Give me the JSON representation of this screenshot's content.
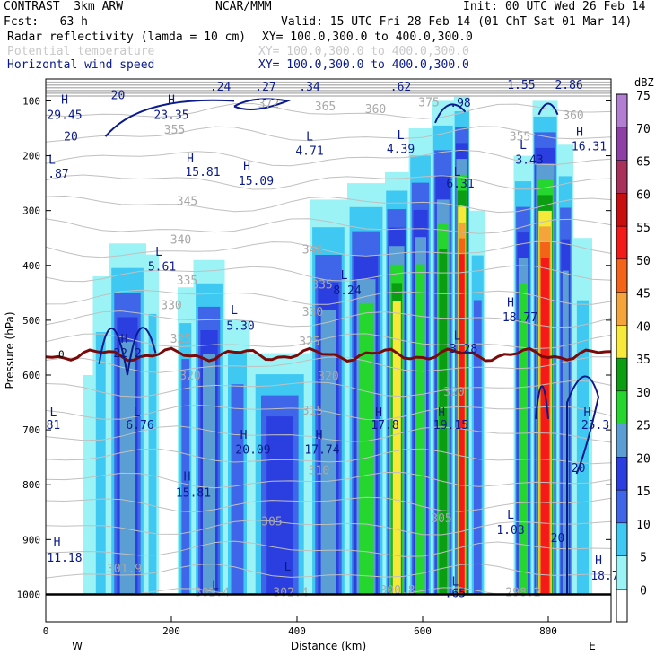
{
  "header": {
    "model": "CONTRAST  3km ARW",
    "org": "NCAR/MMM",
    "init": "Init: 00 UTC Wed 26 Feb 14",
    "fcst": "Fcst:   63 h",
    "valid": "Valid: 15 UTC Fri 28 Feb 14 (01 ChT Sat 01 Mar 14)",
    "fields": [
      {
        "name": "Radar reflectivity (lamda = 10 cm)",
        "xy": "XY= 100.0,300.0 to 400.0,300.0",
        "color": "#000000"
      },
      {
        "name": "Potential temperature",
        "xy": "XY= 100.0,300.0 to 400.0,300.0",
        "color": "#c8c8c8"
      },
      {
        "name": "Horizontal wind speed",
        "xy": "XY= 100.0,300.0 to 400.0,300.0",
        "color": "#0a1a8c"
      }
    ]
  },
  "chart_data": {
    "type": "heatmap",
    "title": "Radar reflectivity (lamda = 10 cm)",
    "xlabel": "Distance (km)",
    "ylabel": "Pressure (hPa)",
    "xlim": [
      0,
      900
    ],
    "ylim": [
      1050,
      60
    ],
    "x_ticks": [
      0,
      200,
      400,
      600,
      800
    ],
    "y_ticks": [
      100,
      200,
      300,
      400,
      500,
      600,
      700,
      800,
      900,
      1000
    ],
    "x_end_labels": {
      "left": "W",
      "right": "E"
    },
    "colorbar": {
      "unit": "dBZ",
      "levels": [
        0,
        5,
        10,
        15,
        20,
        25,
        30,
        35,
        40,
        45,
        50,
        55,
        60,
        65,
        70,
        75
      ],
      "colors": [
        "#ffffff",
        "#9cf3f5",
        "#3fc9f2",
        "#3f66e8",
        "#2b3ee0",
        "#5a9ed4",
        "#24d62e",
        "#0c9e12",
        "#f6e93a",
        "#f4a43a",
        "#f46418",
        "#f41a1a",
        "#c80e0e",
        "#a8305a",
        "#8e3fa6",
        "#b27ed2"
      ]
    },
    "freezing_level_label": "0",
    "isentrope_labels": [
      {
        "text": "365",
        "x": 445,
        "p": 117
      },
      {
        "text": "360",
        "x": 525,
        "p": 122
      },
      {
        "text": "360",
        "x": 840,
        "p": 134
      },
      {
        "text": "375",
        "x": 610,
        "p": 110
      },
      {
        "text": "372",
        "x": 355,
        "p": 112
      },
      {
        "text": "355",
        "x": 205,
        "p": 160
      },
      {
        "text": "355",
        "x": 755,
        "p": 172
      },
      {
        "text": "345",
        "x": 225,
        "p": 290
      },
      {
        "text": "340",
        "x": 215,
        "p": 360
      },
      {
        "text": "340",
        "x": 425,
        "p": 378
      },
      {
        "text": "335",
        "x": 225,
        "p": 435
      },
      {
        "text": "335",
        "x": 440,
        "p": 442
      },
      {
        "text": "330",
        "x": 200,
        "p": 480
      },
      {
        "text": "330",
        "x": 425,
        "p": 492
      },
      {
        "text": "325",
        "x": 215,
        "p": 541
      },
      {
        "text": "325",
        "x": 420,
        "p": 546
      },
      {
        "text": "320",
        "x": 230,
        "p": 608
      },
      {
        "text": "320",
        "x": 450,
        "p": 609
      },
      {
        "text": "320",
        "x": 650,
        "p": 638
      },
      {
        "text": "315",
        "x": 425,
        "p": 672
      },
      {
        "text": "310",
        "x": 435,
        "p": 781
      },
      {
        "text": "305",
        "x": 360,
        "p": 874
      },
      {
        "text": "305",
        "x": 630,
        "p": 868
      },
      {
        "text": "301.9",
        "x": 125,
        "p": 960
      },
      {
        "text": "302.4",
        "x": 265,
        "p": 1003
      },
      {
        "text": "302.4",
        "x": 390,
        "p": 1003
      },
      {
        "text": "300.8",
        "x": 560,
        "p": 999
      },
      {
        "text": "298.2",
        "x": 760,
        "p": 1003
      }
    ],
    "wind_labels": [
      {
        "text": "H",
        "x": 30,
        "p": 105
      },
      {
        "text": "29.45",
        "x": 30,
        "p": 133
      },
      {
        "text": "20",
        "x": 115,
        "p": 97
      },
      {
        "text": "H",
        "x": 200,
        "p": 105
      },
      {
        "text": "23.35",
        "x": 200,
        "p": 133
      },
      {
        "text": "20",
        "x": 40,
        "p": 172
      },
      {
        "text": ".24",
        "x": 278,
        "p": 81
      },
      {
        "text": ".27",
        "x": 350,
        "p": 81
      },
      {
        "text": ".34",
        "x": 420,
        "p": 81
      },
      {
        "text": ".62",
        "x": 565,
        "p": 81
      },
      {
        "text": ".98",
        "x": 660,
        "p": 111
      },
      {
        "text": "1.55",
        "x": 757,
        "p": 78
      },
      {
        "text": "2.86",
        "x": 833,
        "p": 78
      },
      {
        "text": "H",
        "x": 850,
        "p": 164
      },
      {
        "text": "16.31",
        "x": 865,
        "p": 190
      },
      {
        "text": "L",
        "x": 420,
        "p": 172
      },
      {
        "text": "4.71",
        "x": 420,
        "p": 198
      },
      {
        "text": "L",
        "x": 565,
        "p": 170
      },
      {
        "text": "4.39",
        "x": 565,
        "p": 195
      },
      {
        "text": "L",
        "x": 760,
        "p": 188
      },
      {
        "text": "3.43",
        "x": 770,
        "p": 215
      },
      {
        "text": "L",
        "x": 10,
        "p": 215
      },
      {
        "text": ".87",
        "x": 20,
        "p": 240
      },
      {
        "text": "H",
        "x": 230,
        "p": 212
      },
      {
        "text": "15.81",
        "x": 250,
        "p": 237
      },
      {
        "text": "H",
        "x": 320,
        "p": 226
      },
      {
        "text": "15.09",
        "x": 335,
        "p": 253
      },
      {
        "text": "L",
        "x": 655,
        "p": 237
      },
      {
        "text": "6.31",
        "x": 660,
        "p": 258
      },
      {
        "text": "L",
        "x": 180,
        "p": 382
      },
      {
        "text": "5.61",
        "x": 185,
        "p": 409
      },
      {
        "text": "L",
        "x": 475,
        "p": 425
      },
      {
        "text": "8.24",
        "x": 480,
        "p": 453
      },
      {
        "text": "H",
        "x": 740,
        "p": 475
      },
      {
        "text": "18.77",
        "x": 755,
        "p": 502
      },
      {
        "text": "L",
        "x": 300,
        "p": 489
      },
      {
        "text": "5.30",
        "x": 310,
        "p": 517
      },
      {
        "text": "H",
        "x": 125,
        "p": 541
      },
      {
        "text": "22.2",
        "x": 130,
        "p": 567
      },
      {
        "text": "L",
        "x": 655,
        "p": 535
      },
      {
        "text": "3.28",
        "x": 665,
        "p": 559
      },
      {
        "text": "L",
        "x": 12,
        "p": 675
      },
      {
        "text": "81",
        "x": 12,
        "p": 698
      },
      {
        "text": "L",
        "x": 145,
        "p": 675
      },
      {
        "text": "6.76",
        "x": 150,
        "p": 698
      },
      {
        "text": "H",
        "x": 530,
        "p": 675
      },
      {
        "text": "17.8",
        "x": 540,
        "p": 698
      },
      {
        "text": "H",
        "x": 630,
        "p": 675
      },
      {
        "text": "19.15",
        "x": 645,
        "p": 698
      },
      {
        "text": "H",
        "x": 862,
        "p": 675
      },
      {
        "text": "25.3",
        "x": 875,
        "p": 698
      },
      {
        "text": "H",
        "x": 315,
        "p": 716
      },
      {
        "text": "20.09",
        "x": 330,
        "p": 743
      },
      {
        "text": "H",
        "x": 435,
        "p": 716
      },
      {
        "text": "17.74",
        "x": 440,
        "p": 743
      },
      {
        "text": "20",
        "x": 848,
        "p": 777
      },
      {
        "text": "H",
        "x": 225,
        "p": 792
      },
      {
        "text": "15.81",
        "x": 235,
        "p": 822
      },
      {
        "text": "L",
        "x": 740,
        "p": 862
      },
      {
        "text": "1.03",
        "x": 740,
        "p": 890
      },
      {
        "text": "20",
        "x": 815,
        "p": 904
      },
      {
        "text": "H",
        "x": 18,
        "p": 911
      },
      {
        "text": "11.18",
        "x": 30,
        "p": 940
      },
      {
        "text": "L",
        "x": 385,
        "p": 957
      },
      {
        "text": "H",
        "x": 880,
        "p": 945
      },
      {
        "text": "18.7",
        "x": 890,
        "p": 973
      },
      {
        "text": "L",
        "x": 652,
        "p": 984
      },
      {
        "text": ".65",
        "x": 652,
        "p": 1005
      },
      {
        "text": "L",
        "x": 270,
        "p": 990
      }
    ],
    "reflectivity_columns": [
      {
        "x": [
          60,
          75
        ],
        "top": 600,
        "levels": [
          5
        ]
      },
      {
        "x": [
          75,
          100
        ],
        "top": 420,
        "levels": [
          5,
          10
        ]
      },
      {
        "x": [
          100,
          160
        ],
        "top": 360,
        "levels": [
          5,
          10,
          15,
          20,
          25
        ]
      },
      {
        "x": [
          160,
          180
        ],
        "top": 380,
        "levels": [
          5,
          10
        ]
      },
      {
        "x": [
          210,
          235
        ],
        "top": 440,
        "levels": [
          5,
          10,
          15
        ]
      },
      {
        "x": [
          235,
          285
        ],
        "top": 390,
        "levels": [
          5,
          10,
          15,
          20,
          25
        ]
      },
      {
        "x": [
          285,
          325
        ],
        "top": 500,
        "levels": [
          5,
          10,
          15
        ]
      },
      {
        "x": [
          325,
          420
        ],
        "top": 560,
        "levels": [
          5,
          10,
          15,
          20
        ]
      },
      {
        "x": [
          420,
          480
        ],
        "top": 280,
        "levels": [
          5,
          10,
          15,
          20,
          25
        ]
      },
      {
        "x": [
          480,
          540
        ],
        "top": 250,
        "levels": [
          5,
          10,
          15,
          20,
          25,
          30
        ]
      },
      {
        "x": [
          540,
          578
        ],
        "top": 230,
        "levels": [
          5,
          10,
          15,
          20,
          25,
          30,
          35,
          40
        ]
      },
      {
        "x": [
          578,
          615
        ],
        "top": 150,
        "levels": [
          5,
          10,
          15,
          20,
          25,
          30
        ]
      },
      {
        "x": [
          615,
          650
        ],
        "top": 100,
        "levels": [
          5,
          10,
          15,
          20,
          25,
          30,
          35
        ]
      },
      {
        "x": [
          650,
          675
        ],
        "top": 90,
        "levels": [
          5,
          10,
          15,
          20,
          25,
          30,
          35,
          40,
          45,
          50,
          55
        ]
      },
      {
        "x": [
          675,
          700
        ],
        "top": 300,
        "levels": [
          5,
          10,
          15
        ]
      },
      {
        "x": [
          745,
          775
        ],
        "top": 200,
        "levels": [
          5,
          10,
          15,
          20,
          25,
          30
        ]
      },
      {
        "x": [
          775,
          815
        ],
        "top": 100,
        "levels": [
          5,
          10,
          15,
          20,
          25,
          30,
          35,
          40,
          45,
          50,
          55
        ]
      },
      {
        "x": [
          815,
          840
        ],
        "top": 180,
        "levels": [
          5,
          10,
          15,
          20,
          25
        ]
      },
      {
        "x": [
          840,
          870
        ],
        "top": 350,
        "levels": [
          5,
          10
        ]
      }
    ]
  }
}
